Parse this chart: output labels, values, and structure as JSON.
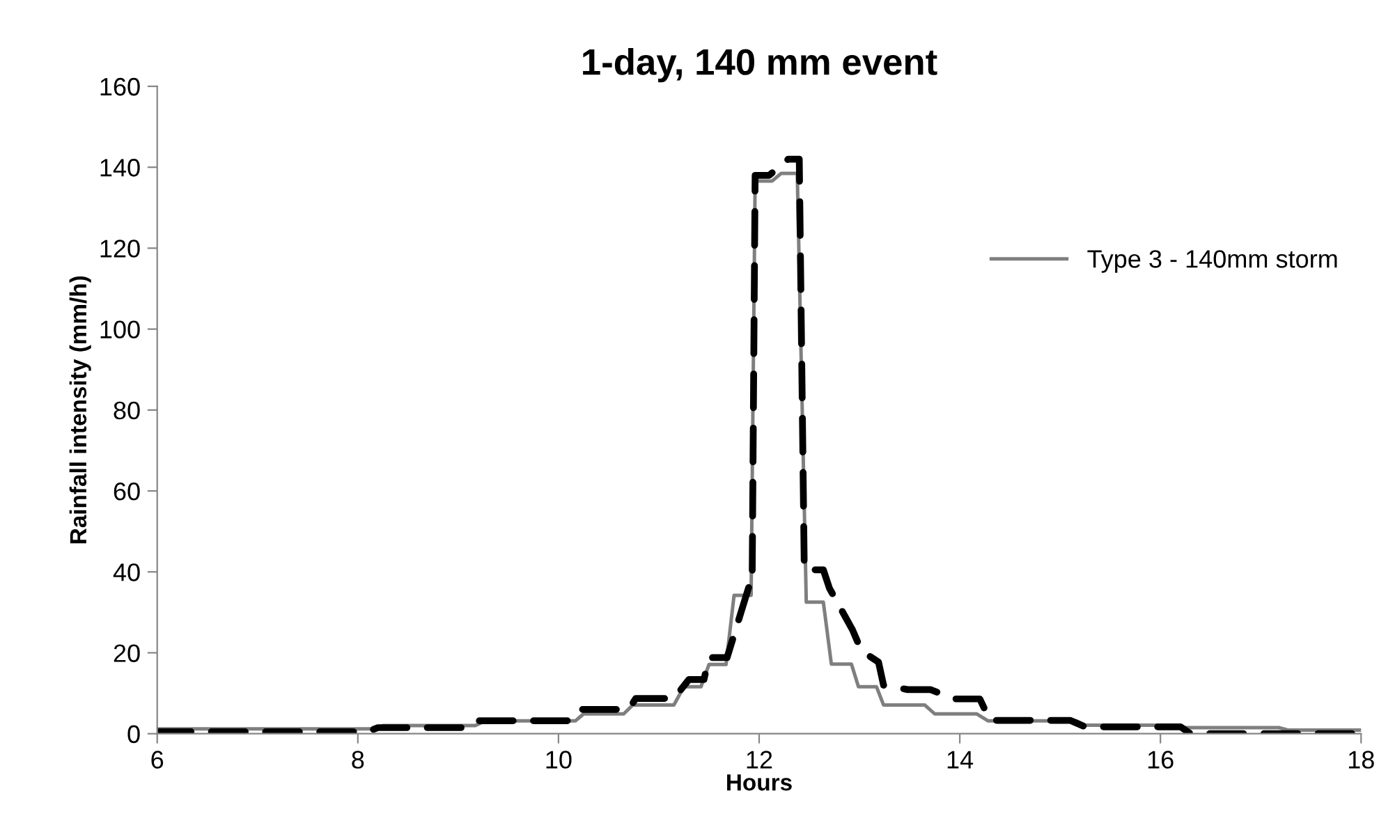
{
  "chart_data": {
    "type": "line",
    "title": "1-day, 140 mm event",
    "xlabel": "Hours",
    "ylabel": "Rainfall intensity (mm/h)",
    "xlim": [
      6,
      18
    ],
    "xticks": [
      6,
      8,
      10,
      12,
      14,
      16,
      18
    ],
    "ylim": [
      0,
      160
    ],
    "yticks": [
      0,
      20,
      40,
      60,
      80,
      100,
      120,
      140,
      160
    ],
    "grid": false,
    "legend": "right",
    "marker": "none",
    "series": [
      {
        "name": "Type 3 - 140mm storm",
        "color": "#7f7f7f",
        "line_style": "solid",
        "x": [
          6,
          8.15,
          8.25,
          9.17,
          9.27,
          10.17,
          10.25,
          10.65,
          10.74,
          11.15,
          11.25,
          11.42,
          11.5,
          11.67,
          11.75,
          11.92,
          11.96,
          12.13,
          12.22,
          12.38,
          12.47,
          12.64,
          12.72,
          12.92,
          12.99,
          13.17,
          13.24,
          13.65,
          13.75,
          14.17,
          14.28,
          15.16,
          15.25,
          16.18,
          16.25,
          17.18,
          17.27,
          18
        ],
        "values": [
          1.2,
          1.2,
          2,
          2,
          3.2,
          3.2,
          4.9,
          4.9,
          7.1,
          7.1,
          11.6,
          11.6,
          17.1,
          17.1,
          34.2,
          34.2,
          136.6,
          136.6,
          138.5,
          138.5,
          32.5,
          32.5,
          17.2,
          17.2,
          11.6,
          11.6,
          7.1,
          7.1,
          4.9,
          4.9,
          3.2,
          3.2,
          2.1,
          2.1,
          1.5,
          1.5,
          0.9,
          0.9
        ]
      },
      {
        "color": "#000000",
        "line_style": "dashed",
        "x": [
          6,
          8.1,
          8.2,
          9.1,
          9.2,
          10.1,
          10.2,
          10.7,
          10.77,
          11.15,
          11.3,
          11.45,
          11.5,
          11.68,
          11.9,
          11.93,
          11.96,
          12.1,
          12.29,
          12.4,
          12.45,
          12.64,
          12.7,
          12.93,
          13.02,
          13.19,
          13.24,
          13.48,
          13.71,
          13.94,
          14.2,
          14.3,
          15.1,
          15.25,
          16.2,
          16.3,
          18
        ],
        "values": [
          0.5,
          0.5,
          1.5,
          1.5,
          3.2,
          3.2,
          6,
          6,
          8.7,
          8.7,
          13.4,
          13.4,
          18.8,
          18.8,
          36.5,
          36.5,
          138,
          138,
          142,
          142,
          40.5,
          40.5,
          36,
          25.7,
          20.5,
          17.7,
          12,
          10.9,
          10.9,
          8.6,
          8.6,
          3.3,
          3.3,
          1.7,
          1.7,
          0,
          0
        ]
      }
    ]
  }
}
